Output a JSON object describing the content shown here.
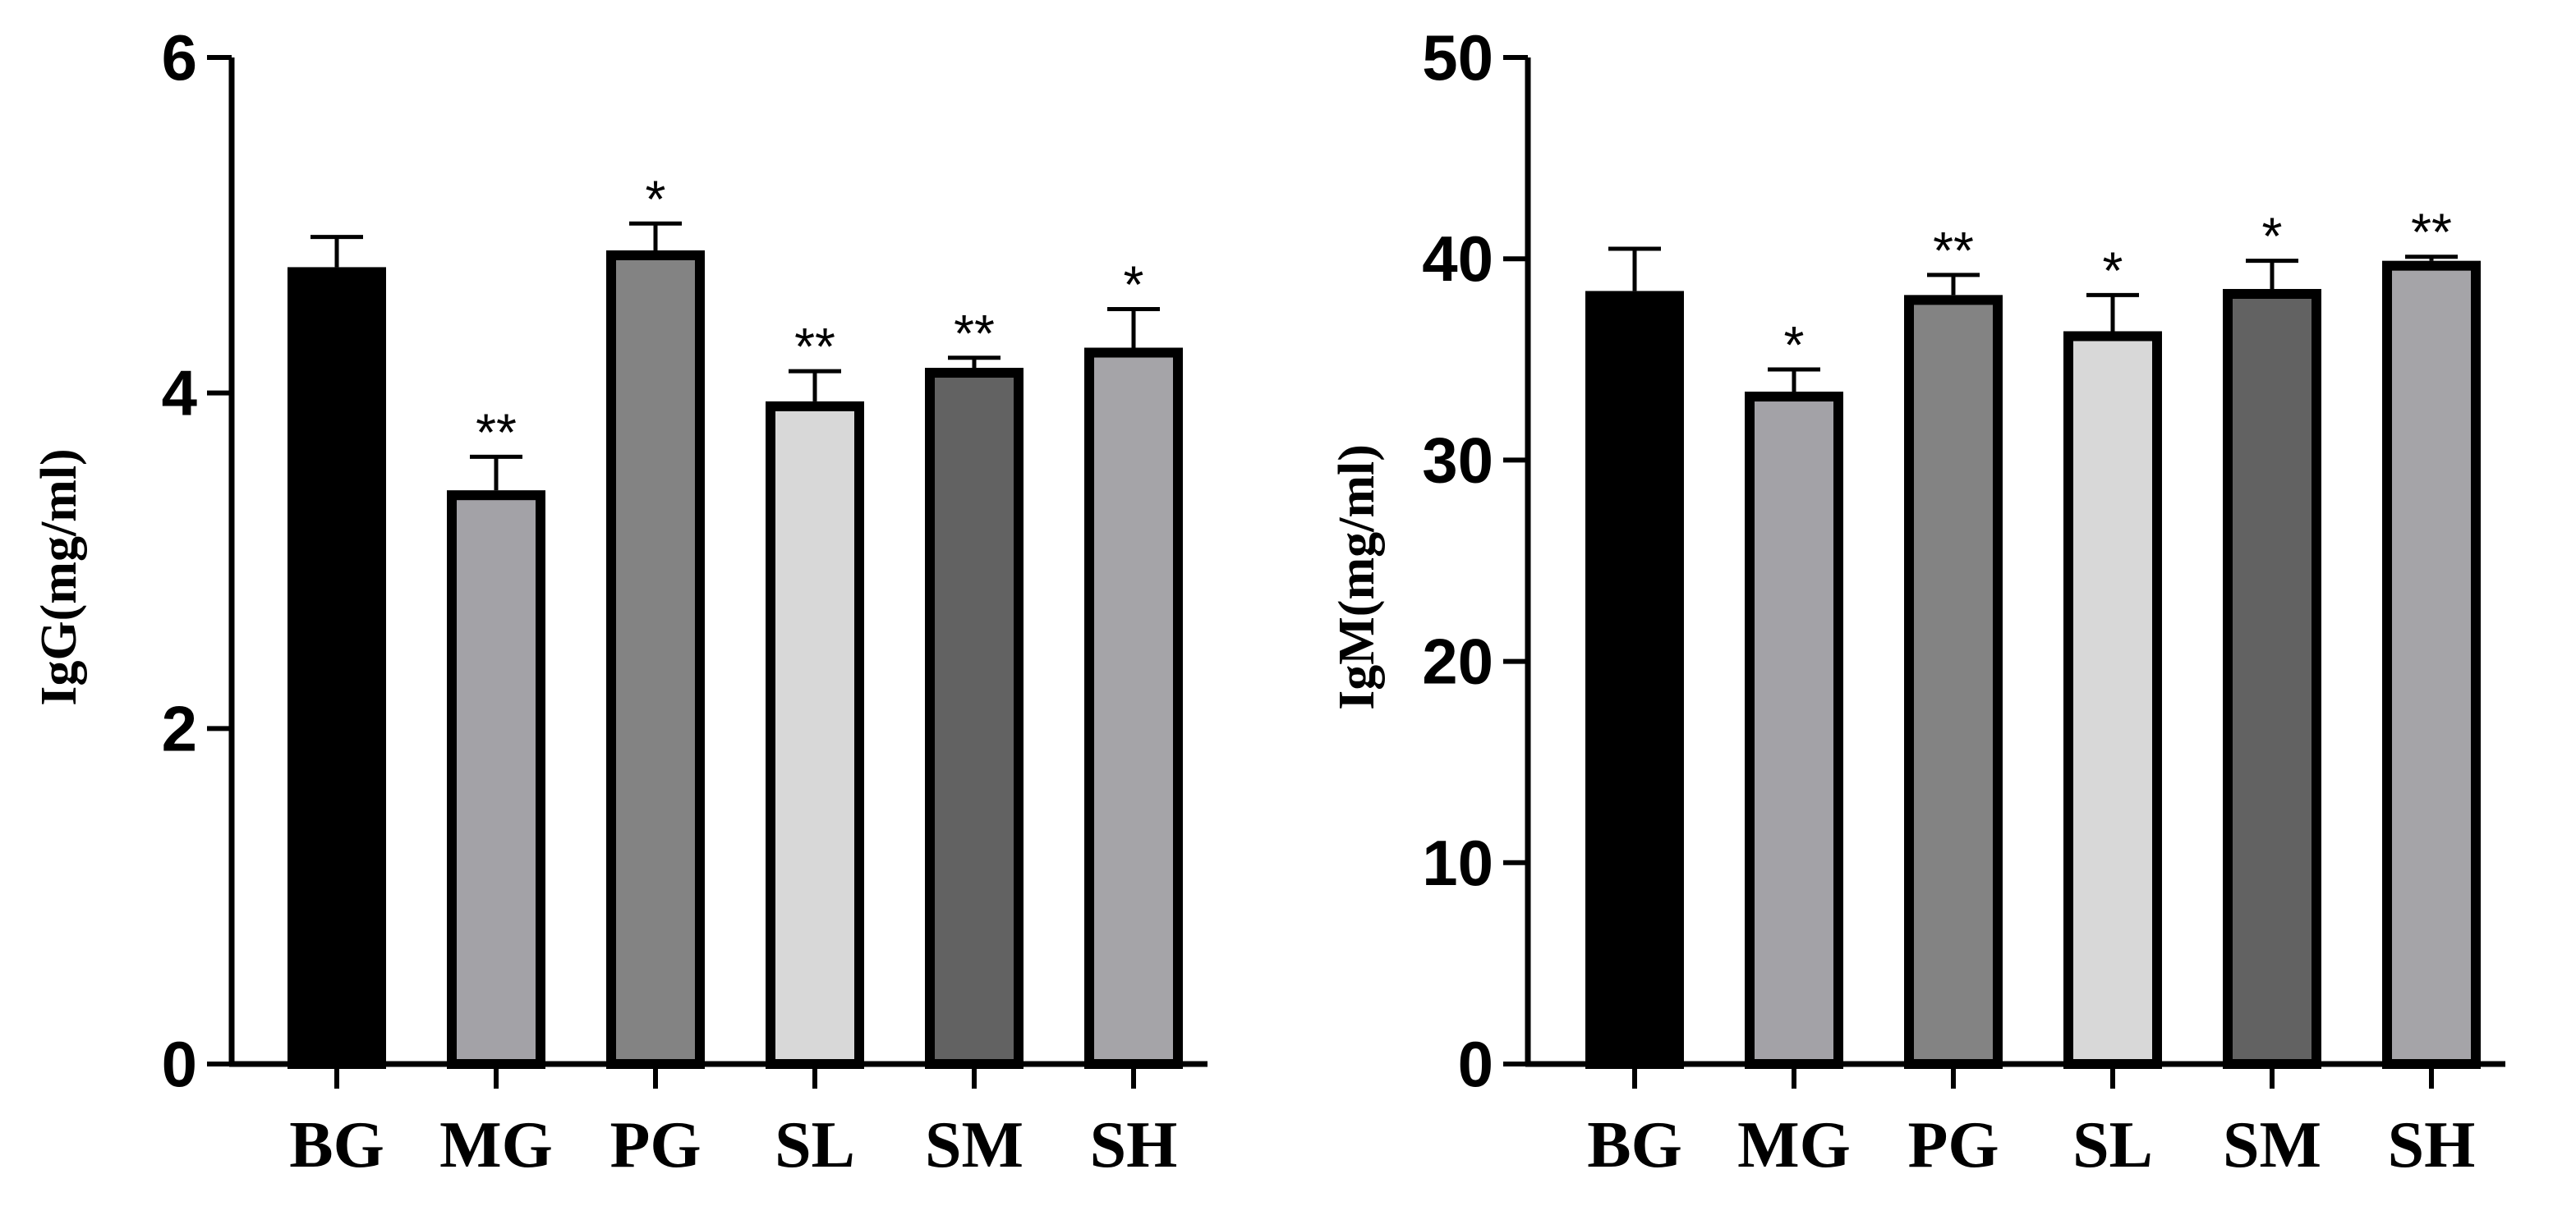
{
  "colors": {
    "BG": "#000000",
    "MG": "#a3a2a7",
    "PG": "#838383",
    "SL": "#d8d8d8",
    "SM": "#626262",
    "SH": "#a5a4a8"
  },
  "chart_data": [
    {
      "type": "bar",
      "title": "",
      "xlabel": "",
      "ylabel": "IgG(mg/ml)",
      "ylim": [
        0,
        6
      ],
      "yticks": [
        0,
        2,
        4,
        6
      ],
      "ytick_labels": [
        "0",
        "2",
        "4",
        "6"
      ],
      "categories": [
        "BG",
        "MG",
        "PG",
        "SL",
        "SM",
        "SH"
      ],
      "values": [
        4.75,
        3.42,
        4.85,
        3.95,
        4.15,
        4.27
      ],
      "errors": [
        0.18,
        0.2,
        0.16,
        0.18,
        0.06,
        0.23
      ],
      "annotations": [
        "",
        "**",
        "*",
        "**",
        "**",
        "*"
      ]
    },
    {
      "type": "bar",
      "title": "",
      "xlabel": "",
      "ylabel": "IgM(mg/ml)",
      "ylim": [
        0,
        50
      ],
      "yticks": [
        0,
        10,
        20,
        30,
        40,
        50
      ],
      "ytick_labels": [
        "0",
        "10",
        "20",
        "30",
        "40",
        "50"
      ],
      "categories": [
        "BG",
        "MG",
        "PG",
        "SL",
        "SM",
        "SH"
      ],
      "values": [
        38.4,
        33.4,
        38.2,
        36.4,
        38.5,
        39.9
      ],
      "errors": [
        2.1,
        1.1,
        1.0,
        1.8,
        1.4,
        0.2
      ],
      "annotations": [
        "",
        "*",
        "**",
        "*",
        "*",
        "**"
      ]
    }
  ]
}
